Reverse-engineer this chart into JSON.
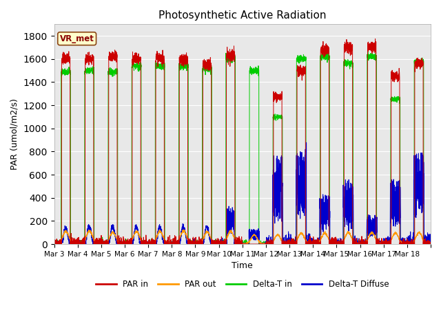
{
  "title": "Photosynthetic Active Radiation",
  "ylabel": "PAR (umol/m2/s)",
  "xlabel": "Time",
  "ylim": [
    0,
    1900
  ],
  "yticks": [
    0,
    200,
    400,
    600,
    800,
    1000,
    1200,
    1400,
    1600,
    1800
  ],
  "background_color": "#e8e8e8",
  "label_box_text": "VR_met",
  "legend_labels": [
    "PAR in",
    "PAR out",
    "Delta-T in",
    "Delta-T Diffuse"
  ],
  "legend_colors": [
    "#cc0000",
    "#ff9900",
    "#00cc00",
    "#0000cc"
  ],
  "line_colors": {
    "par_in": "#cc0000",
    "par_out": "#ff9900",
    "delta_t_in": "#00cc00",
    "delta_t_diffuse": "#0000cc"
  },
  "n_days": 16,
  "start_day": 3,
  "par_in_peaks": [
    1600,
    1600,
    1620,
    1600,
    1610,
    1600,
    1550,
    1630,
    50,
    1270,
    1500,
    1680,
    1700,
    1700,
    1450,
    1560
  ],
  "par_out_peaks": [
    110,
    115,
    100,
    110,
    110,
    115,
    105,
    110,
    80,
    80,
    95,
    95,
    100,
    100,
    95,
    100
  ],
  "dtin_peaks": [
    1490,
    1500,
    1490,
    1540,
    1540,
    1540,
    1520,
    1600,
    1500,
    1100,
    1600,
    1620,
    1560,
    1620,
    1250,
    1570
  ],
  "dtdiff_peaks": [
    120,
    130,
    130,
    130,
    130,
    130,
    130,
    300,
    130,
    760,
    800,
    420,
    540,
    240,
    550,
    810
  ]
}
